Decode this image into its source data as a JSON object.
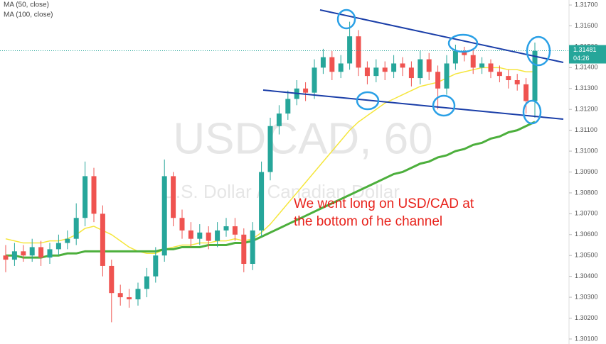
{
  "chart_data": {
    "type": "candlestick",
    "watermark": "USDCAD, 60",
    "watermark_subtitle": "U.S. Dollar / Canadian Dollar",
    "annotation": [
      "We went long on USD/CAD at",
      "the bottom of he channel"
    ],
    "last_price": {
      "value": 1.31481,
      "label": "1.31481"
    },
    "countdown": "04:26",
    "up_color": "#26a69a",
    "down_color": "#ef5350",
    "open": [
      1.305,
      1.3048,
      1.3052,
      1.305,
      1.3054,
      1.3049,
      1.3053,
      1.3056,
      1.3058,
      1.3068,
      1.3088,
      1.307,
      1.3045,
      1.3032,
      1.303,
      1.3029,
      1.3034,
      1.304,
      1.305,
      1.3088,
      1.3068,
      1.3062,
      1.3058,
      1.3061,
      1.3057,
      1.3062,
      1.3064,
      1.306,
      1.3046,
      1.3062,
      1.309,
      1.3112,
      1.3118,
      1.3125,
      1.313,
      1.3128,
      1.314,
      1.3145,
      1.3138,
      1.3142,
      1.3155,
      1.314,
      1.3136,
      1.314,
      1.3138,
      1.3142,
      1.314,
      1.3135,
      1.3144,
      1.3138,
      1.313,
      1.3142,
      1.3148,
      1.3146,
      1.314,
      1.3142,
      1.3138,
      1.3136,
      1.3134,
      1.3132,
      1.3124
    ],
    "high": [
      1.3055,
      1.3056,
      1.3055,
      1.3058,
      1.3057,
      1.3056,
      1.306,
      1.3062,
      1.3075,
      1.3095,
      1.3092,
      1.3074,
      1.3048,
      1.3036,
      1.3034,
      1.3037,
      1.3044,
      1.3054,
      1.3096,
      1.309,
      1.3072,
      1.3066,
      1.3065,
      1.3064,
      1.3066,
      1.3068,
      1.3068,
      1.3063,
      1.3066,
      1.3095,
      1.3116,
      1.3122,
      1.3129,
      1.3134,
      1.3133,
      1.3144,
      1.3149,
      1.3148,
      1.3146,
      1.3162,
      1.3158,
      1.3143,
      1.3144,
      1.3143,
      1.3146,
      1.3145,
      1.3143,
      1.3148,
      1.3147,
      1.3141,
      1.3146,
      1.3151,
      1.315,
      1.3149,
      1.3145,
      1.3144,
      1.3141,
      1.3139,
      1.3137,
      1.3135,
      1.3152
    ],
    "low": [
      1.3042,
      1.3045,
      1.3047,
      1.3047,
      1.3045,
      1.3046,
      1.305,
      1.3053,
      1.3055,
      1.3064,
      1.3066,
      1.304,
      1.3018,
      1.3026,
      1.3025,
      1.3026,
      1.303,
      1.3037,
      1.3047,
      1.3064,
      1.3058,
      1.3054,
      1.3055,
      1.3053,
      1.3054,
      1.3059,
      1.3057,
      1.3042,
      1.3043,
      1.3059,
      1.3086,
      1.3108,
      1.3115,
      1.3122,
      1.3124,
      1.3125,
      1.3137,
      1.3134,
      1.3135,
      1.3139,
      1.3136,
      1.3132,
      1.3133,
      1.3134,
      1.3135,
      1.3136,
      1.3131,
      1.3132,
      1.3134,
      1.312,
      1.3127,
      1.3139,
      1.3143,
      1.3137,
      1.3137,
      1.3135,
      1.3133,
      1.313,
      1.3129,
      1.3118,
      1.3116
    ],
    "close": [
      1.3048,
      1.3052,
      1.305,
      1.3054,
      1.3049,
      1.3053,
      1.3056,
      1.3058,
      1.3068,
      1.3088,
      1.307,
      1.3045,
      1.3032,
      1.303,
      1.3029,
      1.3034,
      1.304,
      1.305,
      1.3088,
      1.3068,
      1.3062,
      1.3058,
      1.3061,
      1.3057,
      1.3062,
      1.3064,
      1.306,
      1.3046,
      1.3062,
      1.309,
      1.3112,
      1.3118,
      1.3125,
      1.313,
      1.3128,
      1.314,
      1.3145,
      1.3138,
      1.3142,
      1.3155,
      1.314,
      1.3136,
      1.314,
      1.3138,
      1.3142,
      1.314,
      1.3135,
      1.3144,
      1.3138,
      1.313,
      1.3142,
      1.3148,
      1.3146,
      1.314,
      1.3142,
      1.3138,
      1.3136,
      1.3134,
      1.3132,
      1.3124,
      1.3148
    ],
    "series": [
      {
        "name": "MA (50, close)",
        "color": "#f5e63c",
        "values": [
          1.3058,
          1.3057,
          1.3056,
          1.3056,
          1.3056,
          1.3057,
          1.3057,
          1.3058,
          1.306,
          1.3063,
          1.3064,
          1.3062,
          1.306,
          1.3057,
          1.3054,
          1.3052,
          1.3051,
          1.3051,
          1.3053,
          1.3054,
          1.3055,
          1.3055,
          1.3056,
          1.3056,
          1.3057,
          1.3057,
          1.3058,
          1.3057,
          1.3058,
          1.3061,
          1.3065,
          1.307,
          1.3075,
          1.308,
          1.3085,
          1.309,
          1.3095,
          1.31,
          1.3105,
          1.311,
          1.3114,
          1.3117,
          1.312,
          1.3123,
          1.3125,
          1.3127,
          1.3129,
          1.3131,
          1.3132,
          1.3133,
          1.3135,
          1.3137,
          1.3138,
          1.3139,
          1.314,
          1.314,
          1.314,
          1.3139,
          1.3139,
          1.3138,
          1.3138
        ]
      },
      {
        "name": "MA (100, close)",
        "color": "#4caf3c",
        "values": [
          1.305,
          1.305,
          1.3049,
          1.3049,
          1.3049,
          1.305,
          1.305,
          1.3051,
          1.3051,
          1.3052,
          1.3052,
          1.3052,
          1.3052,
          1.3052,
          1.3052,
          1.3052,
          1.3052,
          1.3052,
          1.3053,
          1.3053,
          1.3054,
          1.3054,
          1.3054,
          1.3055,
          1.3055,
          1.3055,
          1.3056,
          1.3056,
          1.3057,
          1.3059,
          1.3061,
          1.3063,
          1.3065,
          1.3067,
          1.3069,
          1.3071,
          1.3073,
          1.3075,
          1.3077,
          1.3079,
          1.3081,
          1.3083,
          1.3085,
          1.3087,
          1.3089,
          1.309,
          1.3092,
          1.3094,
          1.3095,
          1.3097,
          1.3098,
          1.31,
          1.3101,
          1.3103,
          1.3104,
          1.3106,
          1.3107,
          1.3109,
          1.311,
          1.3112,
          1.3114
        ]
      }
    ],
    "ylim": [
      1.30076,
      1.31724
    ],
    "yticks": [
      {
        "value": 1.301,
        "label": "1.30100"
      },
      {
        "value": 1.302,
        "label": "1.30200"
      },
      {
        "value": 1.303,
        "label": "1.30300"
      },
      {
        "value": 1.304,
        "label": "1.30400"
      },
      {
        "value": 1.305,
        "label": "1.30500"
      },
      {
        "value": 1.306,
        "label": "1.30600"
      },
      {
        "value": 1.307,
        "label": "1.30700"
      },
      {
        "value": 1.308,
        "label": "1.30800"
      },
      {
        "value": 1.309,
        "label": "1.30900"
      },
      {
        "value": 1.31,
        "label": "1.31000"
      },
      {
        "value": 1.311,
        "label": "1.31100"
      },
      {
        "value": 1.312,
        "label": "1.31200"
      },
      {
        "value": 1.313,
        "label": "1.31300"
      },
      {
        "value": 1.314,
        "label": "1.31400"
      },
      {
        "value": 1.315,
        "label": "1.31500"
      },
      {
        "value": 1.316,
        "label": "1.31600"
      },
      {
        "value": 1.317,
        "label": "1.31700"
      }
    ]
  }
}
